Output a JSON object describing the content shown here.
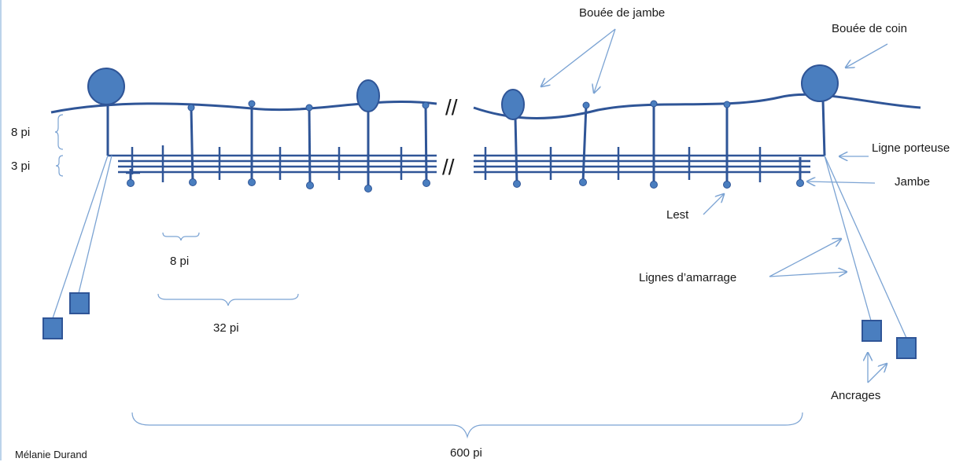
{
  "labels": {
    "buoy_leg": "Bouée de jambe",
    "buoy_corner": "Bouée de coin",
    "carrier_line": "Ligne porteuse",
    "leg": "Jambe",
    "ballast": "Lest",
    "mooring_lines": "Lignes d’amarrage",
    "anchors": "Ancrages"
  },
  "dimensions": {
    "depth_upper": "8 pi",
    "depth_lower": "3 pi",
    "spacing_short": "8 pi",
    "spacing_long": "32 pi",
    "total_length": "600 pi"
  },
  "break_symbol": "//",
  "author": "Mélanie Durand",
  "colors": {
    "structure": "#2f5597",
    "fill": "#4a7ebf",
    "annotation": "#7ba3d3"
  }
}
